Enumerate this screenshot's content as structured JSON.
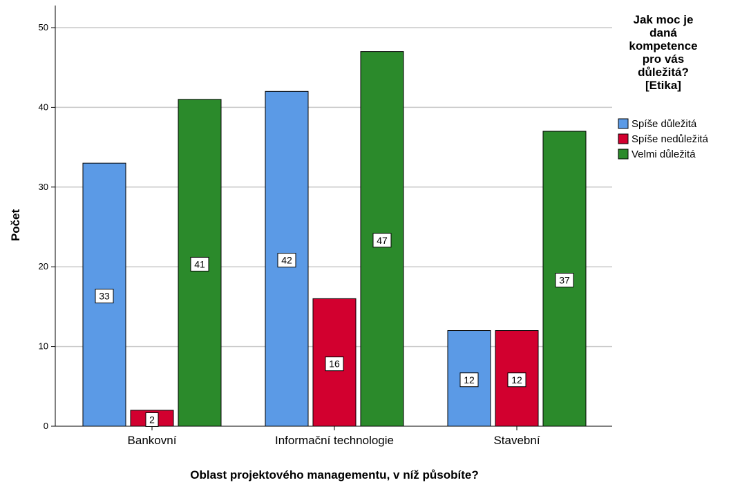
{
  "chart_data": {
    "type": "bar",
    "xlabel": "Oblast projektového managementu, v níž působíte?",
    "ylabel": "Počet",
    "categories": [
      "Bankovní",
      "Informační technologie",
      "Stavební"
    ],
    "series": [
      {
        "name": "Spíše důležitá",
        "values": [
          33,
          42,
          12
        ],
        "color": "#5b9ae6"
      },
      {
        "name": "Spíše nedůležitá",
        "values": [
          2,
          16,
          12
        ],
        "color": "#d2002f"
      },
      {
        "name": "Velmi důležitá",
        "values": [
          41,
          47,
          37
        ],
        "color": "#2b8a2b"
      }
    ],
    "ylim": [
      0,
      52
    ],
    "yticks": [
      0,
      10,
      20,
      30,
      40,
      50
    ],
    "grid": true,
    "legend": {
      "title_lines": [
        "Jak moc je",
        "daná",
        "kompetence",
        "pro vás",
        "důležitá?",
        "[Etika]"
      ],
      "position": "right"
    }
  }
}
